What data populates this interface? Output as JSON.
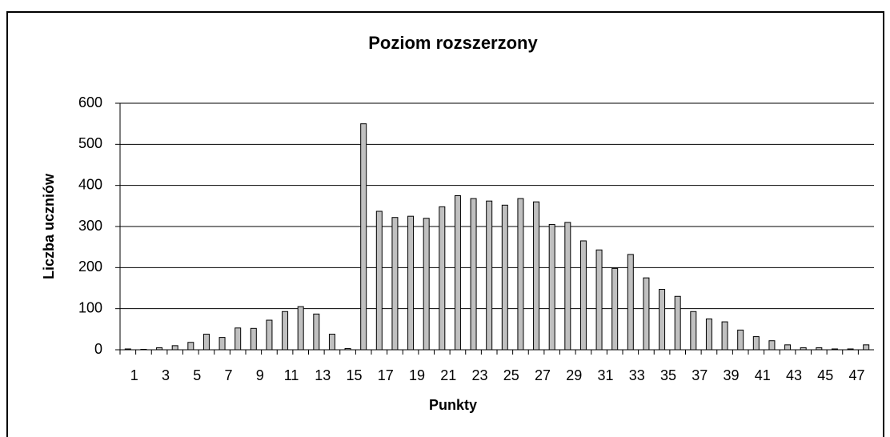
{
  "chart_data": {
    "type": "bar",
    "title": "Poziom rozszerzony",
    "x_label": "Punkty",
    "y_label": "Liczba uczniów",
    "categories": [
      "1",
      null,
      "3",
      null,
      "5",
      null,
      "7",
      null,
      "9",
      null,
      "11",
      null,
      "13",
      null,
      "15",
      null,
      "17",
      null,
      "19",
      null,
      "21",
      null,
      "23",
      null,
      "25",
      null,
      "27",
      null,
      "29",
      null,
      "31",
      null,
      "33",
      null,
      "35",
      null,
      "37",
      null,
      "39",
      null,
      "41",
      null,
      "43",
      null,
      "45",
      null,
      "47",
      null
    ],
    "values": [
      2,
      1,
      5,
      10,
      18,
      38,
      30,
      53,
      52,
      72,
      93,
      105,
      87,
      38,
      3,
      550,
      337,
      322,
      325,
      320,
      348,
      375,
      368,
      362,
      352,
      368,
      360,
      305,
      310,
      265,
      243,
      198,
      232,
      175,
      147,
      130,
      93,
      75,
      68,
      48,
      32,
      22,
      12,
      5,
      5,
      2,
      2,
      12
    ],
    "color": "#c0c0c0",
    "ylim": [
      0,
      600
    ],
    "yticks": [
      0,
      100,
      200,
      300,
      400,
      500,
      600
    ],
    "grid": true
  }
}
